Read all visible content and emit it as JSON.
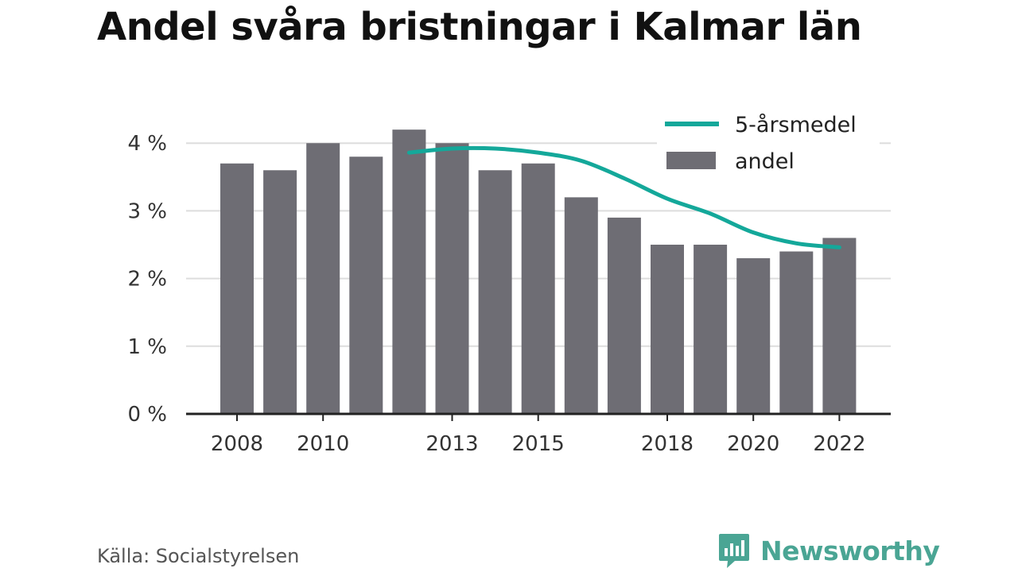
{
  "title": "Andel svåra bristningar i Kalmar län",
  "source": "Källa: Socialstyrelsen",
  "brand": {
    "name": "Newsworthy",
    "icon": "newsworthy-logo-icon"
  },
  "colors": {
    "bar": "#6e6d74",
    "line": "#14a89a",
    "axis": "#222222",
    "grid": "#dddddd",
    "brand": "#4aa594"
  },
  "chart_data": {
    "type": "bar",
    "title": "Andel svåra bristningar i Kalmar län",
    "x": [
      2008,
      2009,
      2010,
      2011,
      2012,
      2013,
      2014,
      2015,
      2016,
      2017,
      2018,
      2019,
      2020,
      2021,
      2022
    ],
    "series": [
      {
        "name": "andel",
        "type": "bar",
        "values": [
          3.7,
          3.6,
          4.0,
          3.8,
          4.2,
          4.0,
          3.6,
          3.7,
          3.2,
          2.9,
          2.5,
          2.5,
          2.3,
          2.4,
          2.6
        ]
      },
      {
        "name": "5-årsmedel",
        "type": "line",
        "values": [
          null,
          null,
          null,
          null,
          3.86,
          3.92,
          3.92,
          3.86,
          3.74,
          3.48,
          3.18,
          2.96,
          2.68,
          2.52,
          2.46
        ]
      }
    ],
    "x_ticks": [
      2008,
      2010,
      2013,
      2015,
      2018,
      2020,
      2022
    ],
    "y_ticks": [
      0,
      1,
      2,
      3,
      4
    ],
    "y_tick_labels": [
      "0 %",
      "1 %",
      "2 %",
      "3 %",
      "4 %"
    ],
    "ylim": [
      0,
      4.2
    ],
    "grid": true,
    "legend": "top-right"
  }
}
